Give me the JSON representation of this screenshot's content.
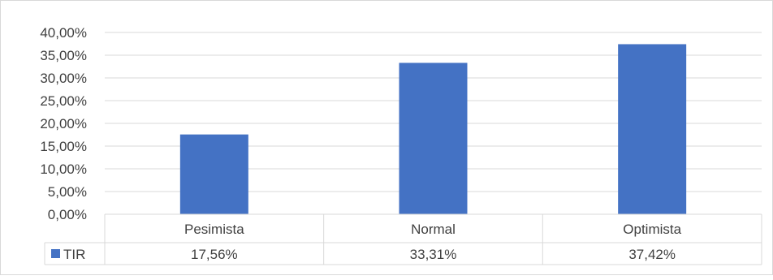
{
  "chart_data": {
    "type": "bar",
    "categories": [
      "Pesimista",
      "Normal",
      "Optimista"
    ],
    "series": [
      {
        "name": "TIR",
        "values": [
          17.56,
          33.31,
          37.42
        ],
        "color": "#4472c4"
      }
    ],
    "ylim": [
      0,
      40
    ],
    "y_ticks": [
      0,
      5,
      10,
      15,
      20,
      25,
      30,
      35,
      40
    ],
    "y_tick_labels": [
      "0,00%",
      "5,00%",
      "10,00%",
      "15,00%",
      "20,00%",
      "25,00%",
      "30,00%",
      "35,00%",
      "40,00%"
    ],
    "grid": true,
    "legend": "data-table-left",
    "data_table": {
      "row_label": "TIR",
      "cells": [
        "17,56%",
        "33,31%",
        "37,42%"
      ]
    },
    "colors": {
      "bar": "#4472c4",
      "grid": "#d9d9d9",
      "text": "#404040"
    }
  }
}
